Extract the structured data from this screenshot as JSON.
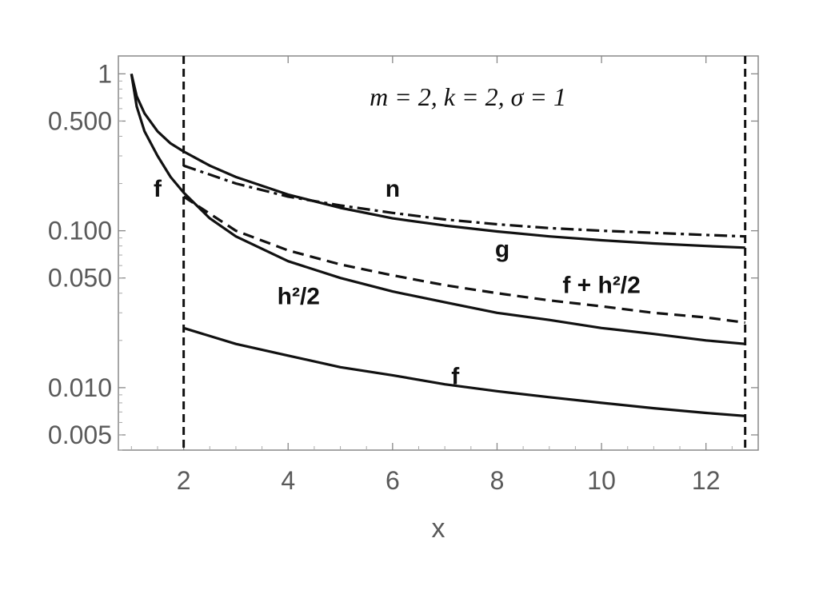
{
  "chart_data": {
    "type": "line",
    "title": "",
    "xlabel": "x",
    "ylabel": "",
    "annotation": "m = 2, k = 2, σ = 1",
    "xlim": [
      0.75,
      13.0
    ],
    "ylim": [
      0.004,
      1.3
    ],
    "yscale": "log",
    "grid": false,
    "x_ticks": [
      2,
      4,
      6,
      8,
      10,
      12
    ],
    "x_tick_labels": [
      "2",
      "4",
      "6",
      "8",
      "10",
      "12"
    ],
    "y_ticks": [
      1,
      0.5,
      0.1,
      0.05,
      0.01,
      0.005
    ],
    "y_tick_labels": [
      "1",
      "0.500",
      "0.100",
      "0.050",
      "0.010",
      "0.005"
    ],
    "vertical_lines": [
      {
        "x": 2,
        "style": "dashed"
      },
      {
        "x": 12.75,
        "style": "dashed"
      }
    ],
    "series": [
      {
        "name": "n",
        "style": "dashdot",
        "x": [
          2,
          3,
          4,
          5,
          6,
          7,
          8,
          9,
          10,
          11,
          12,
          12.75
        ],
        "y": [
          0.26,
          0.2,
          0.165,
          0.145,
          0.13,
          0.118,
          0.11,
          0.104,
          0.1,
          0.097,
          0.094,
          0.092
        ]
      },
      {
        "name": "g",
        "style": "solid",
        "x": [
          1.0,
          1.1,
          1.25,
          1.5,
          1.75,
          2,
          2.5,
          3,
          4,
          5,
          6,
          7,
          8,
          9,
          10,
          11,
          12,
          12.75
        ],
        "y": [
          1.0,
          0.72,
          0.56,
          0.43,
          0.36,
          0.32,
          0.26,
          0.22,
          0.17,
          0.14,
          0.12,
          0.108,
          0.099,
          0.092,
          0.087,
          0.083,
          0.08,
          0.078
        ]
      },
      {
        "name": "f + h²/2",
        "style": "dashed",
        "x": [
          2,
          3,
          4,
          5,
          6,
          7,
          8,
          9,
          10,
          11,
          12,
          12.75
        ],
        "y": [
          0.165,
          0.1,
          0.075,
          0.061,
          0.052,
          0.045,
          0.04,
          0.036,
          0.033,
          0.03,
          0.028,
          0.026
        ]
      },
      {
        "name": "h²/2",
        "style": "solid",
        "x": [
          1.0,
          1.1,
          1.25,
          1.5,
          1.75,
          2,
          2.5,
          3,
          4,
          5,
          6,
          7,
          8,
          9,
          10,
          11,
          12,
          12.75
        ],
        "y": [
          1.0,
          0.62,
          0.43,
          0.3,
          0.22,
          0.175,
          0.12,
          0.092,
          0.064,
          0.05,
          0.041,
          0.035,
          0.03,
          0.027,
          0.024,
          0.022,
          0.02,
          0.019
        ]
      },
      {
        "name": "f",
        "style": "solid",
        "x": [
          2,
          3,
          4,
          5,
          6,
          7,
          8,
          9,
          10,
          11,
          12,
          12.75
        ],
        "y": [
          0.024,
          0.019,
          0.016,
          0.0135,
          0.012,
          0.0105,
          0.0095,
          0.0087,
          0.008,
          0.0074,
          0.0069,
          0.0066
        ]
      }
    ],
    "curve_labels": [
      {
        "text": "n",
        "x": 6.0,
        "y": 0.165
      },
      {
        "text": "g",
        "x": 8.1,
        "y": 0.068
      },
      {
        "text": "f + h²/2",
        "x": 10.0,
        "y": 0.04
      },
      {
        "text": "h²/2",
        "x": 4.2,
        "y": 0.034
      },
      {
        "text": "f",
        "x": 7.2,
        "y": 0.0105
      },
      {
        "text": "f",
        "x": 1.5,
        "y": 0.165
      }
    ]
  }
}
